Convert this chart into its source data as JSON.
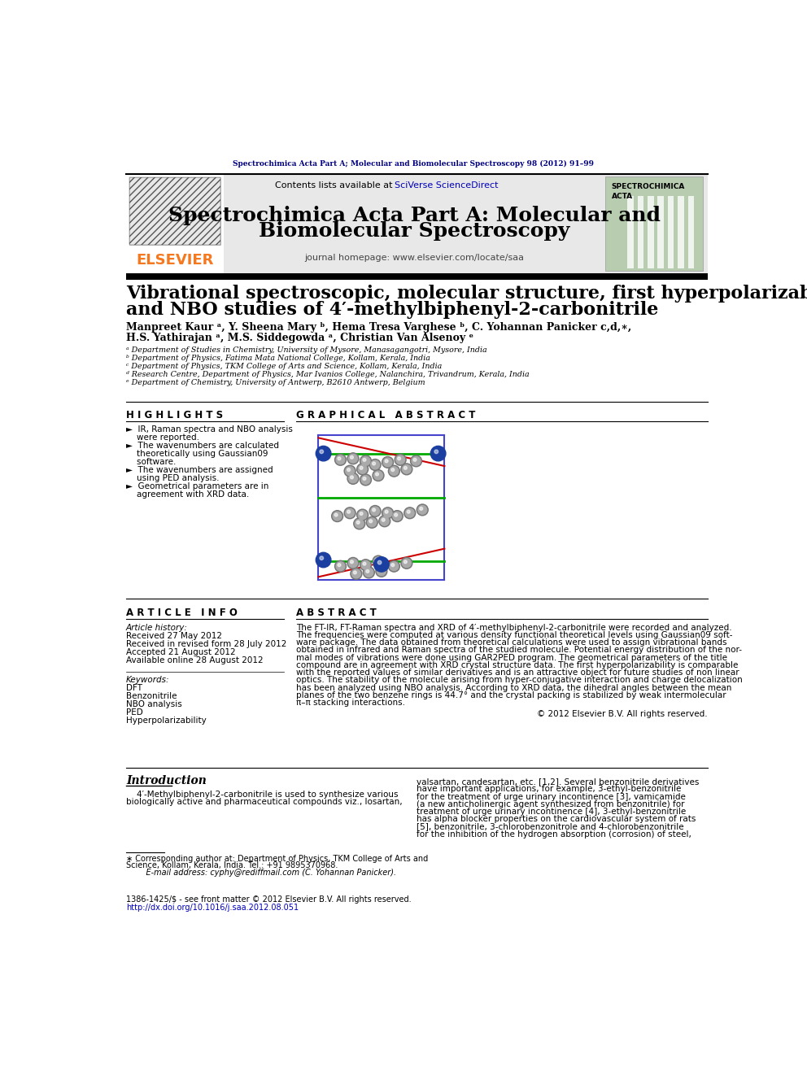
{
  "journal_header_text": "Spectrochimica Acta Part A; Molecular and Biomolecular Spectroscopy 98 (2012) 91–99",
  "journal_title_line1": "Spectrochimica Acta Part A: Molecular and",
  "journal_title_line2": "Biomolecular Spectroscopy",
  "contents_text": "Contents lists available at ",
  "sciverse_text": "SciVerse ScienceDirect",
  "journal_homepage": "journal homepage: www.elsevier.com/locate/saa",
  "elsevier_text": "ELSEVIER",
  "spectrochimica_label": "SPECTROCHIMICA\nACTA",
  "paper_title_line1": "Vibrational spectroscopic, molecular structure, first hyperpolarizability",
  "paper_title_line2": "and NBO studies of 4′-methylbiphenyl-2-carbonitrile",
  "authors_line1": "Manpreet Kaur ᵃ, Y. Sheena Mary ᵇ, Hema Tresa Varghese ᵇ, C. Yohannan Panicker c,d,∗,",
  "authors_line2": "H.S. Yathirajan ᵃ, M.S. Siddegowda ᵃ, Christian Van Alsenoy ᵉ",
  "affil_a": "ᵃ Department of Studies in Chemistry, University of Mysore, Manasagangotri, Mysore, India",
  "affil_b": "ᵇ Department of Physics, Fatima Mata National College, Kollam, Kerala, India",
  "affil_c": "ᶜ Department of Physics, TKM College of Arts and Science, Kollam, Kerala, India",
  "affil_d": "ᵈ Research Centre, Department of Physics, Mar Ivanios College, Nalanchira, Trivandrum, Kerala, India",
  "affil_e": "ᵉ Department of Chemistry, University of Antwerp, B2610 Antwerp, Belgium",
  "highlights_title": "H I G H L I G H T S",
  "highlight1_a": "►  IR, Raman spectra and NBO analysis",
  "highlight1_b": "    were reported.",
  "highlight2_a": "►  The wavenumbers are calculated",
  "highlight2_b": "    theoretically using Gaussian09",
  "highlight2_c": "    software.",
  "highlight3_a": "►  The wavenumbers are assigned",
  "highlight3_b": "    using PED analysis.",
  "highlight4_a": "►  Geometrical parameters are in",
  "highlight4_b": "    agreement with XRD data.",
  "graphical_abstract_title": "G R A P H I C A L   A B S T R A C T",
  "article_info_title": "A R T I C L E   I N F O",
  "article_history_title": "Article history:",
  "received": "Received 27 May 2012",
  "received_revised": "Received in revised form 28 July 2012",
  "accepted": "Accepted 21 August 2012",
  "available": "Available online 28 August 2012",
  "keywords_title": "Keywords:",
  "keyword1": "DFT",
  "keyword2": "Benzonitrile",
  "keyword3": "NBO analysis",
  "keyword4": "PED",
  "keyword5": "Hyperpolarizability",
  "abstract_title": "A B S T R A C T",
  "abstract_text": "The FT-IR, FT-Raman spectra and XRD of 4′-methylbiphenyl-2-carbonitrile were recorded and analyzed.\nThe frequencies were computed at various density functional theoretical levels using Gaussian09 soft-\nware package. The data obtained from theoretical calculations were used to assign vibrational bands\nobtained in infrared and Raman spectra of the studied molecule. Potential energy distribution of the nor-\nmal modes of vibrations were done using GAR2PED program. The geometrical parameters of the title\ncompound are in agreement with XRD crystal structure data. The first hyperpolarizability is comparable\nwith the reported values of similar derivatives and is an attractive object for future studies of non linear\noptics. The stability of the molecule arising from hyper-conjugative interaction and charge delocalization\nhas been analyzed using NBO analysis. According to XRD data, the dihedral angles between the mean\nplanes of the two benzene rings is 44.7° and the crystal packing is stabilized by weak intermolecular\nπ–π stacking interactions.",
  "copyright_text": "© 2012 Elsevier B.V. All rights reserved.",
  "intro_title": "Introduction",
  "intro_col1_lines": [
    "    4′-Methylbiphenyl-2-carbonitrile is used to synthesize various",
    "biologically active and pharmaceutical compounds viz., losartan,"
  ],
  "intro_col2_lines": [
    "valsartan, candesartan, etc. [1,2]. Several benzonitrile derivatives",
    "have important applications, for example, 3-ethyl-benzonitrile",
    "for the treatment of urge urinary incontinence [3], vamicamide",
    "(a new anticholinergic agent synthesized from benzonitrile) for",
    "treatment of urge urinary incontinence [4], 3-ethyl-benzonitrile",
    "has alpha blocker properties on the cardiovascular system of rats",
    "[5], benzonitrile, 3-chlorobenzonitrole and 4-chlorobenzonitrile",
    "for the inhibition of the hydrogen absorption (corrosion) of steel,"
  ],
  "footer_line1a": "∗ Corresponding author at: Department of Physics, TKM College of Arts and",
  "footer_line1b": "Science, Kollam, Kerala, India. Tel.: +91 9895370968.",
  "footer_line2": "    E-mail address: cyphy@rediffmail.com (C. Yohannan Panicker).",
  "footer_issn": "1386-1425/$ - see front matter © 2012 Elsevier B.V. All rights reserved.",
  "footer_doi": "http://dx.doi.org/10.1016/j.saa.2012.08.051",
  "bg_color": "#ffffff",
  "header_bg": "#e8e8e8",
  "elsevier_orange": "#f47920",
  "navy_blue": "#000080",
  "link_blue": "#0000bb",
  "dark_green": "#008000",
  "light_green_bg": "#b8ccb0",
  "blue_atom": "#1a3fa0",
  "gray_atom_dark": "#777777",
  "gray_atom_light": "#aaaaaa"
}
